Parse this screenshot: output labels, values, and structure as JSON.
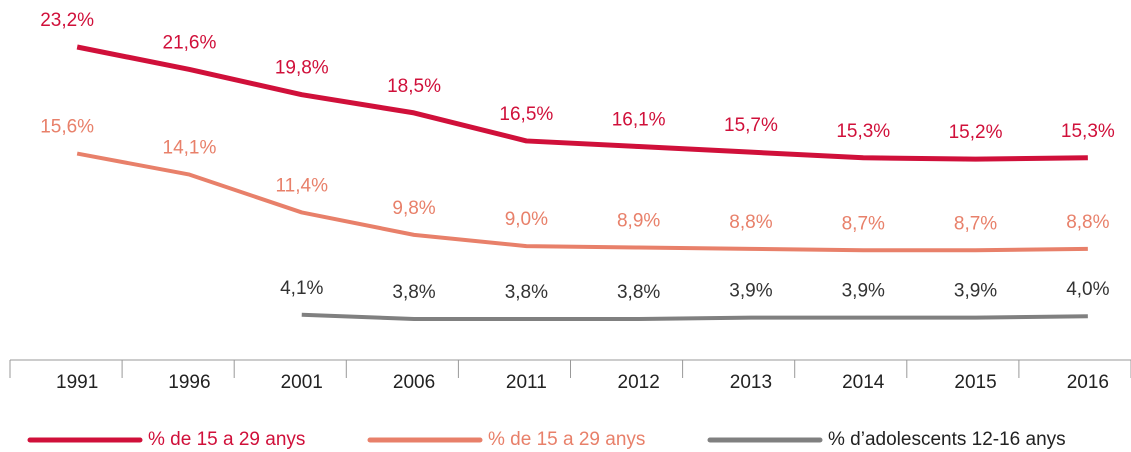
{
  "chart_data": {
    "type": "line",
    "categories": [
      "1991",
      "1996",
      "2001",
      "2006",
      "2011",
      "2012",
      "2013",
      "2014",
      "2015",
      "2016"
    ],
    "series": [
      {
        "name": "% de 15 a 29 anys",
        "color": "#d0103a",
        "values": [
          23.2,
          21.6,
          19.8,
          18.5,
          16.5,
          16.1,
          15.7,
          15.3,
          15.2,
          15.3
        ],
        "value_labels": [
          "23,2%",
          "21,6%",
          "19,8%",
          "18,5%",
          "16,5%",
          "16,1%",
          "15,7%",
          "15,3%",
          "15,2%",
          "15,3%"
        ]
      },
      {
        "name": "% de 15 a 29 anys",
        "color": "#e8806a",
        "values": [
          15.6,
          14.1,
          11.4,
          9.8,
          9.0,
          8.9,
          8.8,
          8.7,
          8.7,
          8.8
        ],
        "value_labels": [
          "15,6%",
          "14,1%",
          "11,4%",
          "9,8%",
          "9,0%",
          "8,9%",
          "8,8%",
          "8,7%",
          "8,7%",
          "8,8%"
        ]
      },
      {
        "name": "% d’adolescents 12-16 anys",
        "color": "#808080",
        "values": [
          null,
          null,
          4.1,
          3.8,
          3.8,
          3.8,
          3.9,
          3.9,
          3.9,
          4.0
        ],
        "value_labels": [
          null,
          null,
          "4,1%",
          "3,8%",
          "3,8%",
          "3,8%",
          "3,9%",
          "3,9%",
          "3,9%",
          "4,0%"
        ]
      }
    ]
  }
}
